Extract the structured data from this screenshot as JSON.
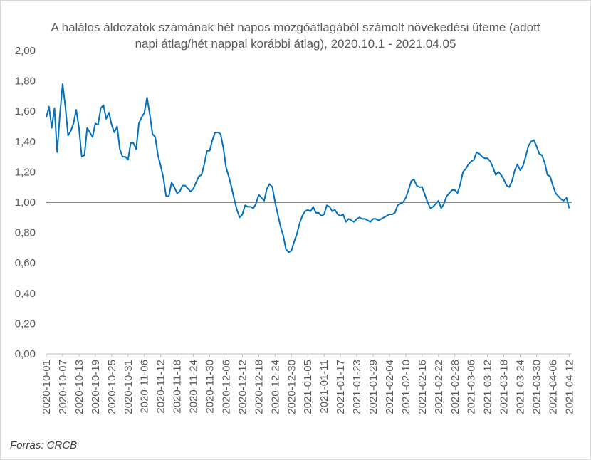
{
  "chart_data": {
    "type": "line",
    "title": "A halálos áldozatok számának hét napos mozgóátlagából számolt növekedési üteme (adott napi átlag/hét nappal korábbi átlag), 2020.10.1 - 2021.04.05",
    "source": "Forrás: CRCB",
    "ylim": [
      0,
      2
    ],
    "yticks": [
      "0,00",
      "0,20",
      "0,40",
      "0,60",
      "0,80",
      "1,00",
      "1,20",
      "1,40",
      "1,60",
      "1,80",
      "2,00"
    ],
    "xticks": [
      "2020-10-01",
      "2020-10-07",
      "2020-10-13",
      "2020-10-19",
      "2020-10-25",
      "2020-10-31",
      "2020-11-06",
      "2020-11-12",
      "2020-11-18",
      "2020-11-24",
      "2020-11-30",
      "2020-12-06",
      "2020-12-12",
      "2020-12-18",
      "2020-12-24",
      "2020-12-30",
      "2021-01-05",
      "2021-01-11",
      "2021-01-17",
      "2021-01-23",
      "2021-01-29",
      "2021-02-04",
      "2021-02-10",
      "2021-02-16",
      "2021-02-22",
      "2021-02-28",
      "2021-03-06",
      "2021-03-12",
      "2021-03-18",
      "2021-03-24",
      "2021-03-30",
      "2021-04-06",
      "2021-04-12"
    ],
    "reference_line": 1.0,
    "grid": false,
    "legend": "none",
    "line_color": "#0070c0",
    "reference_color": "#404040",
    "series": [
      {
        "x_start": "2020-10-01",
        "x_end": "2021-04-05",
        "values": [
          1.56,
          1.63,
          1.49,
          1.62,
          1.33,
          1.58,
          1.78,
          1.63,
          1.44,
          1.47,
          1.52,
          1.61,
          1.49,
          1.3,
          1.31,
          1.49,
          1.46,
          1.43,
          1.52,
          1.51,
          1.62,
          1.64,
          1.55,
          1.59,
          1.51,
          1.46,
          1.5,
          1.35,
          1.3,
          1.3,
          1.28,
          1.39,
          1.39,
          1.35,
          1.52,
          1.56,
          1.59,
          1.69,
          1.58,
          1.45,
          1.43,
          1.31,
          1.24,
          1.16,
          1.04,
          1.04,
          1.13,
          1.1,
          1.06,
          1.07,
          1.11,
          1.11,
          1.09,
          1.07,
          1.09,
          1.13,
          1.17,
          1.18,
          1.25,
          1.34,
          1.34,
          1.41,
          1.46,
          1.46,
          1.45,
          1.36,
          1.23,
          1.17,
          1.1,
          1.02,
          0.95,
          0.9,
          0.92,
          0.98,
          0.97,
          0.97,
          0.96,
          0.99,
          1.05,
          1.03,
          1.01,
          1.09,
          1.12,
          1.1,
          1.0,
          0.92,
          0.84,
          0.78,
          0.69,
          0.67,
          0.68,
          0.74,
          0.79,
          0.86,
          0.91,
          0.94,
          0.95,
          0.94,
          0.97,
          0.93,
          0.93,
          0.91,
          0.92,
          0.98,
          0.97,
          0.94,
          0.95,
          0.92,
          0.91,
          0.92,
          0.87,
          0.89,
          0.88,
          0.87,
          0.89,
          0.9,
          0.89,
          0.89,
          0.88,
          0.87,
          0.89,
          0.89,
          0.88,
          0.89,
          0.9,
          0.91,
          0.92,
          0.92,
          0.93,
          0.98,
          0.99,
          1.0,
          1.03,
          1.08,
          1.14,
          1.15,
          1.11,
          1.1,
          1.1,
          1.05,
          1.0,
          0.96,
          0.97,
          0.99,
          1.01,
          0.96,
          0.99,
          1.04,
          1.06,
          1.08,
          1.08,
          1.06,
          1.12,
          1.2,
          1.22,
          1.25,
          1.27,
          1.28,
          1.33,
          1.32,
          1.3,
          1.29,
          1.29,
          1.27,
          1.23,
          1.18,
          1.2,
          1.18,
          1.15,
          1.11,
          1.1,
          1.14,
          1.21,
          1.25,
          1.21,
          1.24,
          1.3,
          1.37,
          1.4,
          1.41,
          1.37,
          1.32,
          1.31,
          1.26,
          1.18,
          1.17,
          1.11,
          1.06,
          1.04,
          1.02,
          1.01,
          1.03,
          0.96
        ]
      }
    ]
  }
}
